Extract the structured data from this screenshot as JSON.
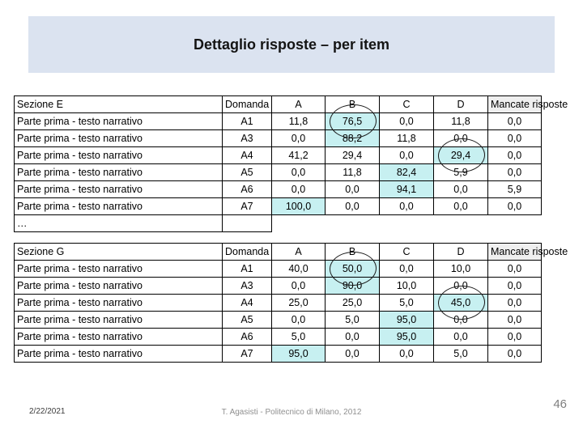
{
  "title": "Dettaglio risposte – per item",
  "colors": {
    "title_bg": "#dbe3f0",
    "highlight": "#c7f0f1",
    "header_gray": "#efefef",
    "table_border": "#000000",
    "footer_gray": "#8f8f8f"
  },
  "tables": [
    {
      "section": "Sezione E",
      "domanda_header": "Domanda",
      "answer_headers": [
        "A",
        "B",
        "C",
        "D"
      ],
      "mancate_header": "Mancate risposte",
      "rows": [
        {
          "label": "Parte prima - testo narrativo",
          "domanda": "A1",
          "values": [
            "11,8",
            "76,5",
            "0,0",
            "11,8",
            "0,0"
          ],
          "highlight": [
            1
          ],
          "circled": [
            1
          ]
        },
        {
          "label": "Parte prima - testo narrativo",
          "domanda": "A3",
          "values": [
            "0,0",
            "88,2",
            "11,8",
            "0,0",
            "0,0"
          ],
          "highlight": [
            1
          ],
          "circled": []
        },
        {
          "label": "Parte prima - testo narrativo",
          "domanda": "A4",
          "values": [
            "41,2",
            "29,4",
            "0,0",
            "29,4",
            "0,0"
          ],
          "highlight": [
            3
          ],
          "circled": [
            3
          ]
        },
        {
          "label": "Parte prima - testo narrativo",
          "domanda": "A5",
          "values": [
            "0,0",
            "11,8",
            "82,4",
            "5,9",
            "0,0"
          ],
          "highlight": [
            2
          ],
          "circled": []
        },
        {
          "label": "Parte prima - testo narrativo",
          "domanda": "A6",
          "values": [
            "0,0",
            "0,0",
            "94,1",
            "0,0",
            "5,9"
          ],
          "highlight": [
            2
          ],
          "circled": []
        },
        {
          "label": "Parte prima - testo narrativo",
          "domanda": "A7",
          "values": [
            "100,0",
            "0,0",
            "0,0",
            "0,0",
            "0,0"
          ],
          "highlight": [
            0
          ],
          "circled": []
        }
      ],
      "ellipsis": "…"
    },
    {
      "section": "Sezione G",
      "domanda_header": "Domanda",
      "answer_headers": [
        "A",
        "B",
        "C",
        "D"
      ],
      "mancate_header": "Mancate risposte",
      "rows": [
        {
          "label": "Parte prima - testo narrativo",
          "domanda": "A1",
          "values": [
            "40,0",
            "50,0",
            "0,0",
            "10,0",
            "0,0"
          ],
          "highlight": [
            1
          ],
          "circled": [
            1
          ]
        },
        {
          "label": "Parte prima - testo narrativo",
          "domanda": "A3",
          "values": [
            "0,0",
            "90,0",
            "10,0",
            "0,0",
            "0,0"
          ],
          "highlight": [
            1
          ],
          "circled": []
        },
        {
          "label": "Parte prima - testo narrativo",
          "domanda": "A4",
          "values": [
            "25,0",
            "25,0",
            "5,0",
            "45,0",
            "0,0"
          ],
          "highlight": [
            3
          ],
          "circled": [
            3
          ]
        },
        {
          "label": "Parte prima - testo narrativo",
          "domanda": "A5",
          "values": [
            "0,0",
            "5,0",
            "95,0",
            "0,0",
            "0,0"
          ],
          "highlight": [
            2
          ],
          "circled": []
        },
        {
          "label": "Parte prima - testo narrativo",
          "domanda": "A6",
          "values": [
            "5,0",
            "0,0",
            "95,0",
            "0,0",
            "0,0"
          ],
          "highlight": [
            2
          ],
          "circled": []
        },
        {
          "label": "Parte prima - testo narrativo",
          "domanda": "A7",
          "values": [
            "95,0",
            "0,0",
            "0,0",
            "5,0",
            "0,0"
          ],
          "highlight": [
            0
          ],
          "circled": []
        }
      ],
      "ellipsis": null
    }
  ],
  "footer": {
    "date": "2/22/2021",
    "credit": "T. Agasisti - Politecnico di Milano, 2012",
    "page": "46"
  }
}
